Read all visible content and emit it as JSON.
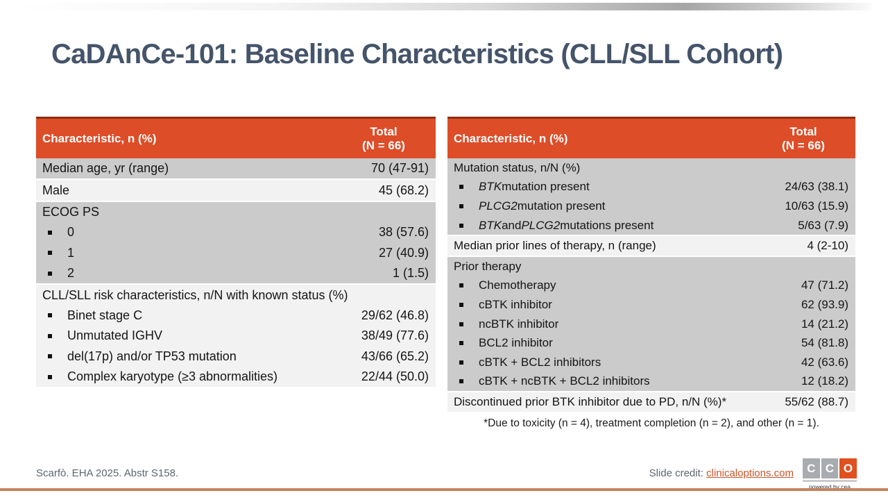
{
  "slide": {
    "title": "CaDAnCe-101: Baseline Characteristics (CLL/SLL Cohort)",
    "footnote": "*Due to toxicity (n = 4), treatment completion (n = 2), and other (n = 1).",
    "reference": "Scarfò. EHA 2025. Abstr S158.",
    "credit_label": "Slide credit: ",
    "credit_link": "clinicaloptions.com",
    "logo": {
      "letters": [
        "C",
        "C",
        "O"
      ],
      "tagline": "powered by cea"
    }
  },
  "colors": {
    "header_orange": "#DD4D28",
    "header_top_edge": "#8C2F10",
    "row_dark": "#CBCBCB",
    "row_light": "#F2F2F2",
    "title_slate": "#44546A",
    "footer_gray": "#5B6770",
    "link_orange": "#C9552B",
    "bottom_line": "#C4825F",
    "logo_gray_tile": "#A8ACB0",
    "logo_orange_tile": "#E0511F"
  },
  "tables": [
    {
      "id": "left",
      "header": {
        "characteristic": "Characteristic, n (%)",
        "total_line1": "Total",
        "total_line2": "(N = 66)"
      },
      "groups": [
        {
          "shade": "dark",
          "rows": [
            {
              "bullet": false,
              "label": [
                {
                  "t": "Median age, yr (range)"
                }
              ],
              "value": "70 (47-91)"
            }
          ]
        },
        {
          "shade": "light",
          "rows": [
            {
              "bullet": false,
              "label": [
                {
                  "t": "Male"
                }
              ],
              "value": "45 (68.2)"
            }
          ]
        },
        {
          "shade": "dark",
          "rows": [
            {
              "bullet": false,
              "label": [
                {
                  "t": "ECOG PS"
                }
              ],
              "value": ""
            },
            {
              "bullet": true,
              "label": [
                {
                  "t": "0"
                }
              ],
              "value": "38 (57.6)"
            },
            {
              "bullet": true,
              "label": [
                {
                  "t": "1"
                }
              ],
              "value": "27 (40.9)"
            },
            {
              "bullet": true,
              "label": [
                {
                  "t": "2"
                }
              ],
              "value": "1 (1.5)"
            }
          ]
        },
        {
          "shade": "light",
          "rows": [
            {
              "bullet": false,
              "label": [
                {
                  "t": "CLL/SLL risk characteristics, n/N with known status (%)"
                }
              ],
              "value": ""
            },
            {
              "bullet": true,
              "label": [
                {
                  "t": "Binet stage C"
                }
              ],
              "value": "29/62 (46.8)"
            },
            {
              "bullet": true,
              "label": [
                {
                  "t": "Unmutated IGHV"
                }
              ],
              "value": "38/49 (77.6)"
            },
            {
              "bullet": true,
              "label": [
                {
                  "t": "del(17p) and/or TP53 mutation"
                }
              ],
              "value": "43/66 (65.2)"
            },
            {
              "bullet": true,
              "label": [
                {
                  "t": "Complex karyotype (≥3 abnormalities)"
                }
              ],
              "value": "22/44 (50.0)"
            }
          ]
        }
      ]
    },
    {
      "id": "right",
      "header": {
        "characteristic": "Characteristic, n (%)",
        "total_line1": "Total",
        "total_line2": "(N = 66)"
      },
      "groups": [
        {
          "shade": "dark",
          "rows": [
            {
              "bullet": false,
              "label": [
                {
                  "t": "Mutation status, n/N (%)"
                }
              ],
              "value": ""
            },
            {
              "bullet": true,
              "label": [
                {
                  "t": "BTK",
                  "i": true
                },
                {
                  "t": " mutation present"
                }
              ],
              "value": "24/63 (38.1)"
            },
            {
              "bullet": true,
              "label": [
                {
                  "t": "PLCG2",
                  "i": true
                },
                {
                  "t": " mutation present"
                }
              ],
              "value": "10/63 (15.9)"
            },
            {
              "bullet": true,
              "label": [
                {
                  "t": "BTK",
                  "i": true
                },
                {
                  "t": " and "
                },
                {
                  "t": "PLCG2",
                  "i": true
                },
                {
                  "t": " mutations present"
                }
              ],
              "value": "5/63 (7.9)"
            }
          ]
        },
        {
          "shade": "light",
          "rows": [
            {
              "bullet": false,
              "label": [
                {
                  "t": "Median prior lines of therapy, n (range)"
                }
              ],
              "value": "4 (2-10)"
            }
          ]
        },
        {
          "shade": "dark",
          "rows": [
            {
              "bullet": false,
              "label": [
                {
                  "t": "Prior therapy"
                }
              ],
              "value": ""
            },
            {
              "bullet": true,
              "label": [
                {
                  "t": "Chemotherapy"
                }
              ],
              "value": "47 (71.2)"
            },
            {
              "bullet": true,
              "label": [
                {
                  "t": "cBTK inhibitor"
                }
              ],
              "value": "62 (93.9)"
            },
            {
              "bullet": true,
              "label": [
                {
                  "t": "ncBTK inhibitor"
                }
              ],
              "value": "14 (21.2)"
            },
            {
              "bullet": true,
              "label": [
                {
                  "t": "BCL2 inhibitor"
                }
              ],
              "value": "54 (81.8)"
            },
            {
              "bullet": true,
              "label": [
                {
                  "t": "cBTK + BCL2 inhibitors"
                }
              ],
              "value": "42 (63.6)"
            },
            {
              "bullet": true,
              "label": [
                {
                  "t": "cBTK + ncBTK + BCL2 inhibitors"
                }
              ],
              "value": "12 (18.2)"
            }
          ]
        },
        {
          "shade": "light",
          "rows": [
            {
              "bullet": false,
              "label": [
                {
                  "t": "Discontinued prior BTK inhibitor due to PD, n/N (%)*"
                }
              ],
              "value": "55/62 (88.7)"
            }
          ]
        }
      ]
    }
  ]
}
